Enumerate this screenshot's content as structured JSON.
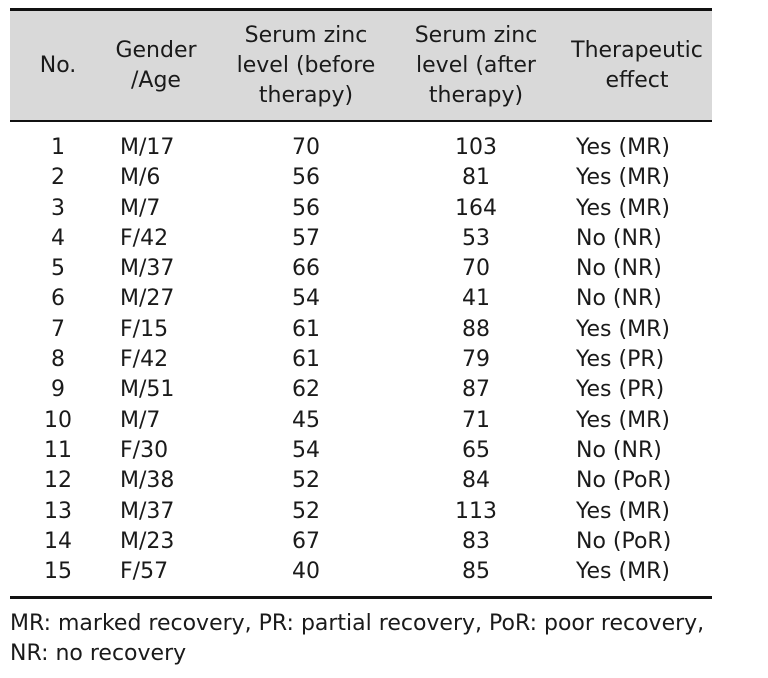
{
  "table": {
    "headers": {
      "no": "No.",
      "gender_age": "Gender\n/Age",
      "before": "Serum  zinc\nlevel  (before\ntherapy)",
      "after": "Serum  zinc\nlevel  (after\ntherapy)",
      "effect": "Therapeutic\neffect"
    },
    "rows": [
      {
        "no": "1",
        "gender_age": "M/17",
        "before": "70",
        "after": "103",
        "effect": "Yes  (MR)"
      },
      {
        "no": "2",
        "gender_age": "M/6",
        "before": "56",
        "after": "81",
        "effect": "Yes  (MR)"
      },
      {
        "no": "3",
        "gender_age": "M/7",
        "before": "56",
        "after": "164",
        "effect": "Yes  (MR)"
      },
      {
        "no": "4",
        "gender_age": "F/42",
        "before": "57",
        "after": "53",
        "effect": "No  (NR)"
      },
      {
        "no": "5",
        "gender_age": "M/37",
        "before": "66",
        "after": "70",
        "effect": "No  (NR)"
      },
      {
        "no": "6",
        "gender_age": "M/27",
        "before": "54",
        "after": "41",
        "effect": "No  (NR)"
      },
      {
        "no": "7",
        "gender_age": "F/15",
        "before": "61",
        "after": "88",
        "effect": "Yes  (MR)"
      },
      {
        "no": "8",
        "gender_age": "F/42",
        "before": "61",
        "after": "79",
        "effect": "Yes  (PR)"
      },
      {
        "no": "9",
        "gender_age": "M/51",
        "before": "62",
        "after": "87",
        "effect": "Yes  (PR)"
      },
      {
        "no": "10",
        "gender_age": "M/7",
        "before": "45",
        "after": "71",
        "effect": "Yes  (MR)"
      },
      {
        "no": "11",
        "gender_age": "F/30",
        "before": "54",
        "after": "65",
        "effect": "No  (NR)"
      },
      {
        "no": "12",
        "gender_age": "M/38",
        "before": "52",
        "after": "84",
        "effect": "No  (PoR)"
      },
      {
        "no": "13",
        "gender_age": "M/37",
        "before": "52",
        "after": "113",
        "effect": "Yes  (MR)"
      },
      {
        "no": "14",
        "gender_age": "M/23",
        "before": "67",
        "after": "83",
        "effect": "No  (PoR)"
      },
      {
        "no": "15",
        "gender_age": "F/57",
        "before": "40",
        "after": "85",
        "effect": "Yes  (MR)"
      }
    ]
  },
  "footnote": "MR:  marked  recovery,  PR:  partial  recovery,  PoR:  poor  recovery,\nNR:  no  recovery",
  "colors": {
    "header_background": "#d9d9d9",
    "rule": "#111111",
    "text": "#1a1a1a"
  }
}
